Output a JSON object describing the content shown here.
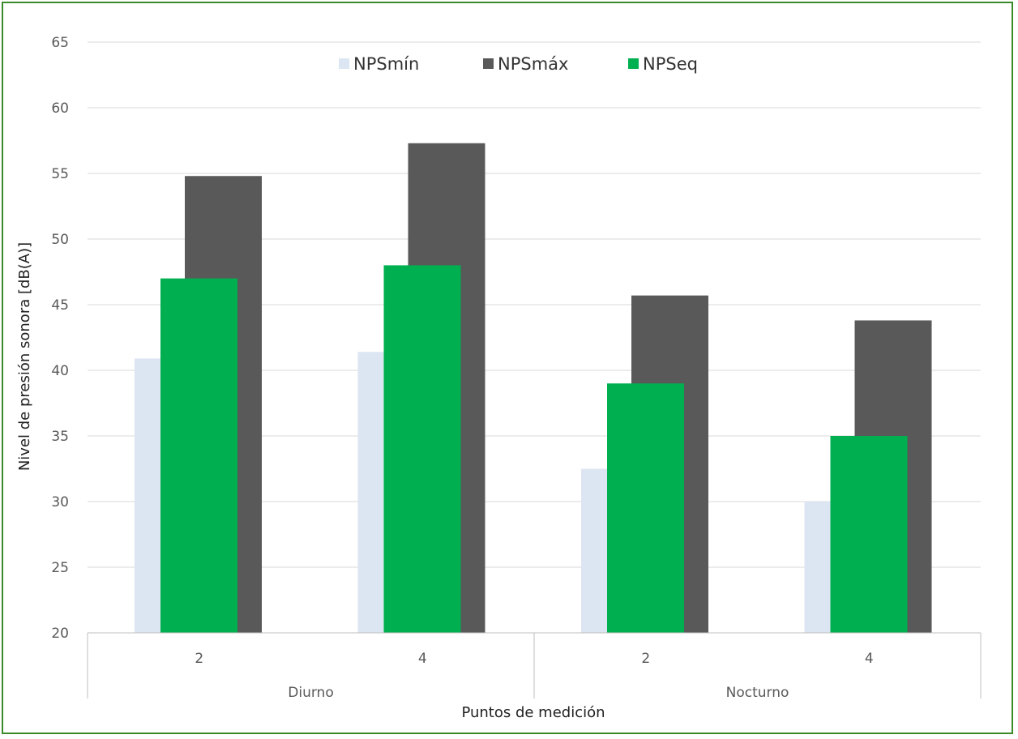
{
  "chart_data": {
    "type": "bar",
    "title": "",
    "xlabel": "Puntos de medición",
    "ylabel": "Nivel de presión sonora [dB(A)]",
    "ylim": [
      20,
      65
    ],
    "yticks": [
      20,
      25,
      30,
      35,
      40,
      45,
      50,
      55,
      60,
      65
    ],
    "grid": true,
    "legend_position": "top",
    "groups": [
      {
        "label": "Diurno",
        "categories": [
          "2",
          "4"
        ]
      },
      {
        "label": "Nocturno",
        "categories": [
          "2",
          "4"
        ]
      }
    ],
    "series": [
      {
        "name": "NPSmín",
        "color": "#dce6f2",
        "values": [
          40.9,
          41.4,
          32.5,
          30.0
        ]
      },
      {
        "name": "NPSeq",
        "color": "#00b050",
        "values": [
          47.0,
          48.0,
          39.0,
          35.0
        ]
      },
      {
        "name": "NPSmáx",
        "color": "#595959",
        "values": [
          54.8,
          57.3,
          45.7,
          43.8
        ]
      }
    ],
    "legend_order": [
      "NPSmín",
      "NPSmáx",
      "NPSeq"
    ]
  }
}
